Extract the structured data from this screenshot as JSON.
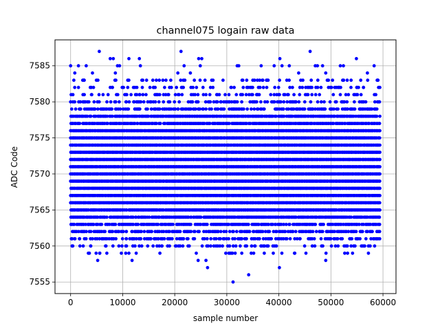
{
  "chart_data": {
    "type": "scatter",
    "title": "channel075 logain raw data",
    "xlabel": "sample number",
    "ylabel": "ADC Code",
    "xlim": [
      -3000,
      62500
    ],
    "ylim": [
      7553.4,
      7588.6
    ],
    "grid": true,
    "marker_color": "#0000ff",
    "x_ticks": [
      0,
      10000,
      20000,
      30000,
      40000,
      50000,
      60000
    ],
    "y_ticks": [
      7555,
      7560,
      7565,
      7570,
      7575,
      7580,
      7585
    ],
    "x_range": [
      0,
      59400
    ],
    "dense_band": [
      7561,
      7579
    ],
    "series": [
      {
        "values_note_free": true,
        "levels": [
          {
            "y": 7579,
            "density": 0.55
          },
          {
            "y": 7578,
            "density": 0.85
          },
          {
            "y": 7577,
            "density": 0.9
          },
          {
            "y": 7576,
            "density": 1.0
          },
          {
            "y": 7575,
            "density": 1.0
          },
          {
            "y": 7574,
            "density": 1.0
          },
          {
            "y": 7573,
            "density": 1.0
          },
          {
            "y": 7572,
            "density": 1.0
          },
          {
            "y": 7571,
            "density": 1.0
          },
          {
            "y": 7570,
            "density": 1.0
          },
          {
            "y": 7569,
            "density": 1.0
          },
          {
            "y": 7568,
            "density": 1.0
          },
          {
            "y": 7567,
            "density": 1.0
          },
          {
            "y": 7566,
            "density": 1.0
          },
          {
            "y": 7565,
            "density": 0.95
          },
          {
            "y": 7564,
            "density": 0.85
          },
          {
            "y": 7563,
            "density": 0.75
          },
          {
            "y": 7562,
            "density": 0.55
          },
          {
            "y": 7561,
            "density": 0.45
          },
          {
            "y": 7580,
            "density": 0.35
          },
          {
            "y": 7581,
            "density": 0.28
          },
          {
            "y": 7582,
            "density": 0.22
          },
          {
            "y": 7583,
            "density": 0.15
          },
          {
            "y": 7560,
            "density": 0.2
          },
          {
            "y": 7559,
            "density": 0.06
          }
        ],
        "outliers": [
          [
            0,
            7585
          ],
          [
            800,
            7584
          ],
          [
            1500,
            7585
          ],
          [
            3000,
            7585
          ],
          [
            4200,
            7584
          ],
          [
            2500,
            7583
          ],
          [
            5500,
            7587
          ],
          [
            7600,
            7586
          ],
          [
            8200,
            7586
          ],
          [
            9000,
            7585
          ],
          [
            9400,
            7585
          ],
          [
            8600,
            7584
          ],
          [
            11200,
            7586
          ],
          [
            13200,
            7586
          ],
          [
            13400,
            7585
          ],
          [
            20600,
            7584
          ],
          [
            21200,
            7587
          ],
          [
            21800,
            7585
          ],
          [
            23000,
            7584
          ],
          [
            24600,
            7586
          ],
          [
            25200,
            7586
          ],
          [
            24900,
            7585
          ],
          [
            32000,
            7585
          ],
          [
            32300,
            7585
          ],
          [
            36600,
            7585
          ],
          [
            39100,
            7585
          ],
          [
            40200,
            7586
          ],
          [
            40600,
            7585
          ],
          [
            42000,
            7585
          ],
          [
            43800,
            7584
          ],
          [
            46000,
            7587
          ],
          [
            47000,
            7585
          ],
          [
            47400,
            7585
          ],
          [
            48400,
            7585
          ],
          [
            49000,
            7584
          ],
          [
            51800,
            7585
          ],
          [
            52400,
            7585
          ],
          [
            54900,
            7586
          ],
          [
            57000,
            7584
          ],
          [
            58300,
            7585
          ],
          [
            59000,
            7583
          ],
          [
            5200,
            7558
          ],
          [
            5600,
            7559
          ],
          [
            3600,
            7559
          ],
          [
            11800,
            7558
          ],
          [
            12600,
            7559
          ],
          [
            24500,
            7558
          ],
          [
            26000,
            7558
          ],
          [
            26300,
            7557
          ],
          [
            31200,
            7555
          ],
          [
            34200,
            7556
          ],
          [
            37200,
            7559
          ],
          [
            40100,
            7557
          ],
          [
            43000,
            7559
          ],
          [
            45200,
            7559
          ],
          [
            49000,
            7558
          ],
          [
            53200,
            7559
          ],
          [
            57200,
            7559
          ],
          [
            29800,
            7559
          ],
          [
            30400,
            7559
          ],
          [
            6800,
            7560
          ],
          [
            1800,
            7560
          ],
          [
            16600,
            7560
          ],
          [
            19000,
            7560
          ]
        ]
      }
    ]
  }
}
